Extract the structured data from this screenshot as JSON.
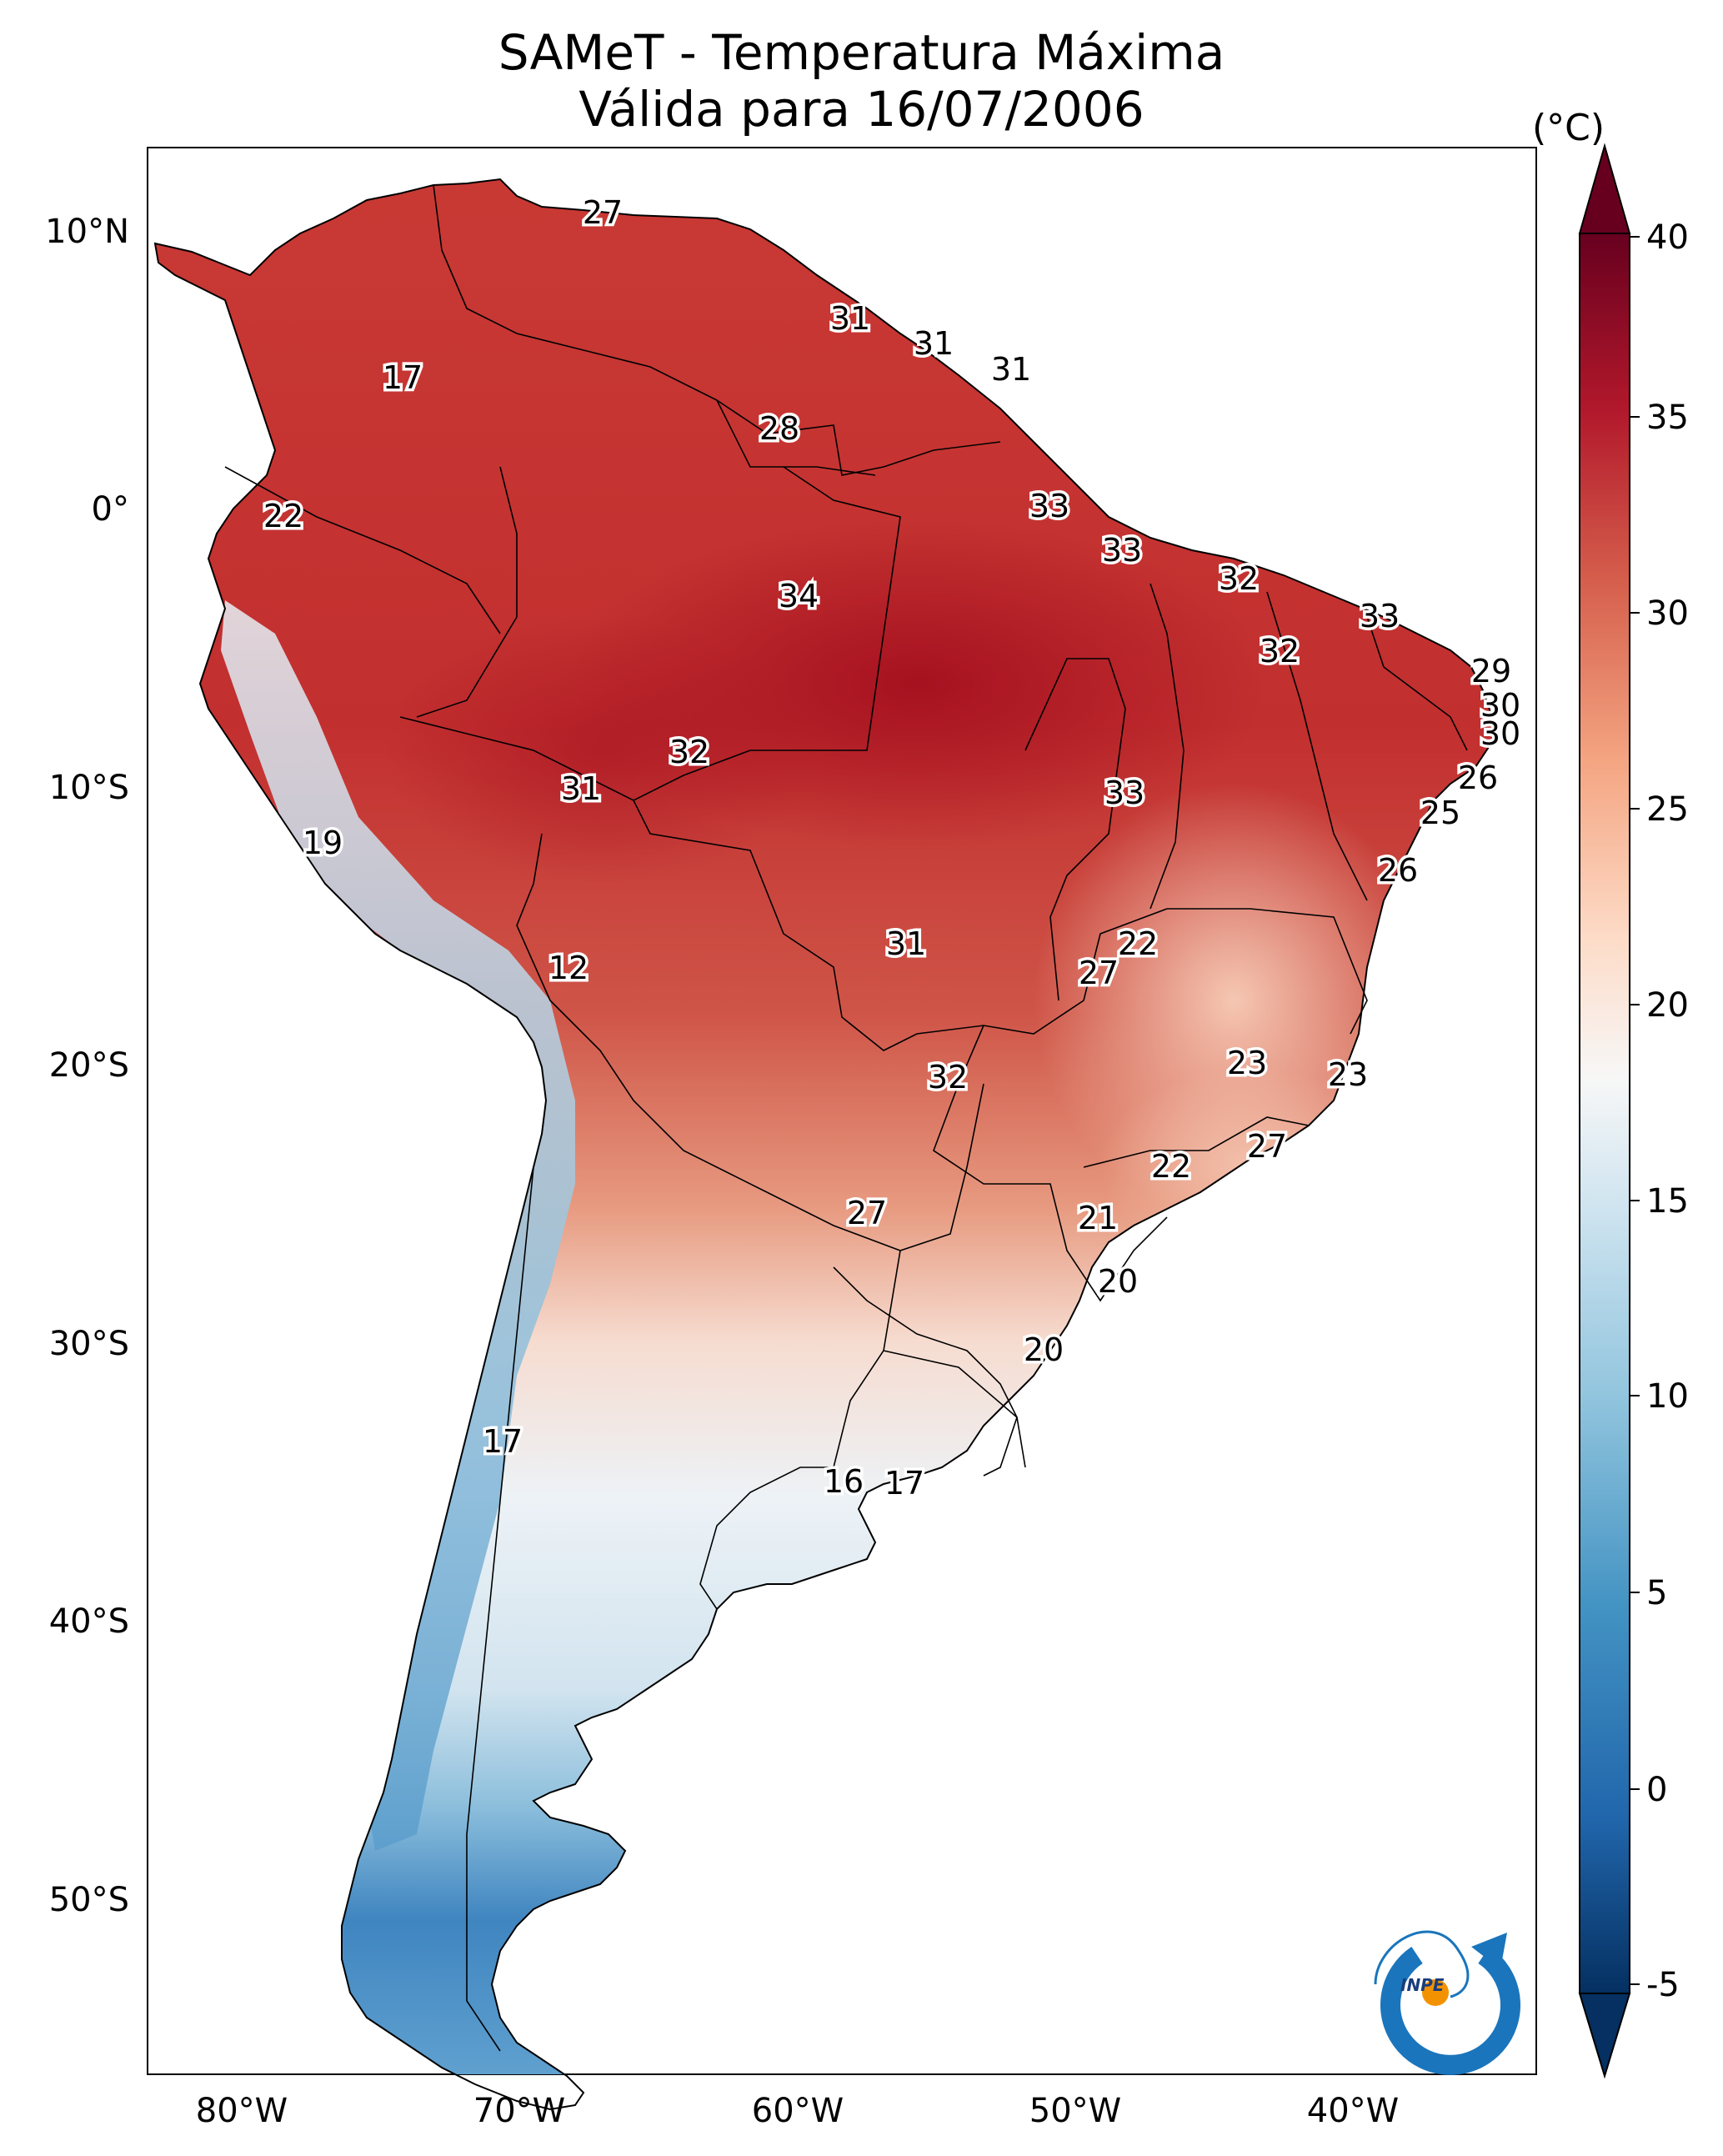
{
  "title_line1": "SAMeT - Temperatura Máxima",
  "title_line2": "Válida para 16/07/2006",
  "colorbar": {
    "unit": "(°C)",
    "ticks": [
      "40",
      "35",
      "30",
      "25",
      "20",
      "15",
      "10",
      "5",
      "0",
      "-5"
    ],
    "colors": [
      "#053061",
      "#2166ac",
      "#4393c3",
      "#92c5de",
      "#d1e5f0",
      "#f7f7f7",
      "#fddbc7",
      "#f4a582",
      "#d6604d",
      "#b2182b",
      "#67001f"
    ]
  },
  "axes": {
    "lat_labels": [
      "10°N",
      "0°",
      "10°S",
      "20°S",
      "30°S",
      "40°S",
      "50°S"
    ],
    "lon_labels": [
      "80°W",
      "70°W",
      "60°W",
      "50°W",
      "40°W"
    ]
  },
  "station_labels": [
    "27",
    "31",
    "31",
    "31",
    "17",
    "28",
    "22",
    "33",
    "33",
    "32",
    "34",
    "33",
    "32",
    "29",
    "30",
    "30",
    "32",
    "31",
    "33",
    "26",
    "25",
    "19",
    "26",
    "31",
    "22",
    "27",
    "12",
    "23",
    "23",
    "32",
    "27",
    "22",
    "27",
    "21",
    "20",
    "20",
    "17",
    "16",
    "17"
  ],
  "logo_text": "INPE"
}
